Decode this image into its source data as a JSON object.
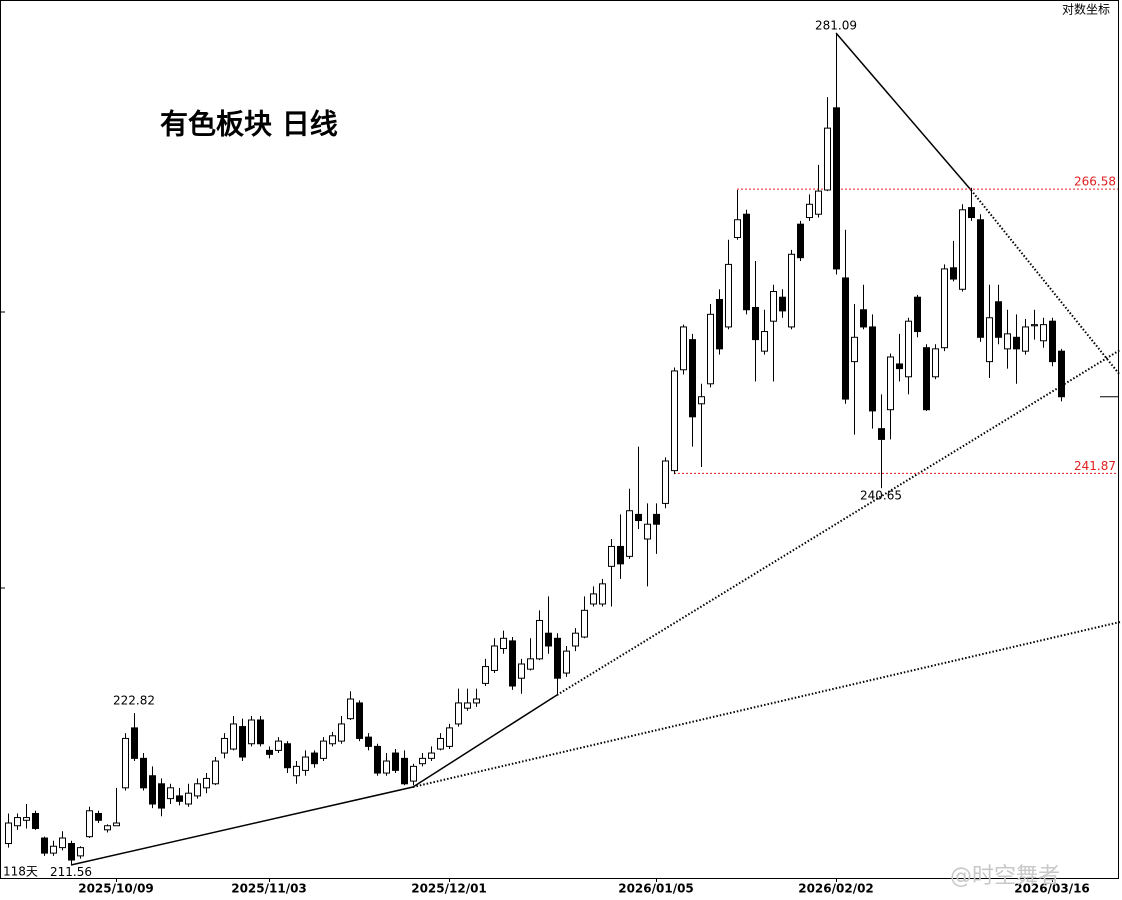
{
  "chart_data": {
    "type": "candlestick",
    "title": "有色板块 日线",
    "scale_label": "对数坐标",
    "period_label": "118天",
    "watermark": "@时空舞者",
    "log_scale": true,
    "ylim": [
      210.6,
      284.4
    ],
    "up_color": "#ffffff",
    "down_color": "#000000",
    "reference_lines": [
      266.58,
      241.87
    ],
    "reference_color": "#e02020",
    "categories": [
      null,
      null,
      null,
      null,
      null,
      null,
      null,
      null,
      null,
      null,
      null,
      null,
      "2025/10/09",
      null,
      null,
      null,
      null,
      null,
      null,
      null,
      null,
      null,
      null,
      null,
      null,
      null,
      null,
      null,
      null,
      "2025/11/03",
      null,
      null,
      null,
      null,
      null,
      null,
      null,
      null,
      null,
      null,
      null,
      null,
      null,
      null,
      null,
      null,
      null,
      null,
      null,
      "2025/12/01",
      null,
      null,
      null,
      null,
      null,
      null,
      null,
      null,
      null,
      null,
      null,
      null,
      null,
      null,
      null,
      null,
      null,
      null,
      null,
      null,
      null,
      null,
      "2026/01/05",
      null,
      null,
      null,
      null,
      null,
      null,
      null,
      null,
      null,
      null,
      null,
      null,
      null,
      null,
      null,
      null,
      null,
      null,
      null,
      "2026/02/02",
      null,
      null,
      null,
      null,
      null,
      null,
      null,
      null,
      null,
      null,
      null,
      null,
      null,
      null,
      null,
      null,
      null,
      null,
      null,
      null,
      null,
      null,
      null,
      "2026/03/16",
      null
    ],
    "ohlc": [
      [
        213.1,
        215.3,
        212.8,
        214.6
      ],
      [
        214.4,
        215.3,
        214.1,
        215.0
      ],
      [
        214.8,
        216.0,
        214.2,
        215.0
      ],
      [
        215.3,
        215.5,
        214.1,
        214.2
      ],
      [
        213.5,
        213.6,
        212.2,
        212.4
      ],
      [
        212.4,
        213.3,
        212.2,
        212.9
      ],
      [
        212.8,
        214.0,
        212.6,
        213.5
      ],
      [
        213.1,
        213.3,
        211.56,
        211.9
      ],
      [
        212.2,
        212.9,
        212.0,
        212.8
      ],
      [
        213.6,
        215.8,
        213.5,
        215.5
      ],
      [
        215.3,
        215.5,
        214.6,
        214.8
      ],
      [
        214.1,
        214.5,
        213.9,
        214.4
      ],
      [
        214.4,
        217.2,
        214.4,
        214.6
      ],
      [
        217.2,
        221.3,
        217.0,
        220.9
      ],
      [
        221.7,
        222.82,
        219.2,
        219.4
      ],
      [
        219.4,
        219.8,
        217.0,
        217.2
      ],
      [
        218.1,
        218.8,
        215.7,
        216.0
      ],
      [
        217.5,
        217.9,
        215.1,
        215.7
      ],
      [
        216.4,
        217.5,
        216.0,
        217.2
      ],
      [
        216.6,
        217.2,
        215.9,
        216.2
      ],
      [
        216.0,
        217.5,
        215.8,
        216.8
      ],
      [
        216.6,
        217.9,
        216.4,
        217.5
      ],
      [
        217.2,
        218.3,
        216.8,
        217.9
      ],
      [
        217.5,
        219.5,
        217.4,
        219.2
      ],
      [
        219.8,
        221.3,
        219.4,
        220.9
      ],
      [
        220.1,
        222.6,
        220.0,
        222.0
      ],
      [
        221.8,
        222.4,
        219.2,
        219.5
      ],
      [
        220.5,
        222.6,
        220.3,
        222.3
      ],
      [
        222.3,
        222.6,
        220.3,
        220.5
      ],
      [
        220.0,
        220.3,
        219.4,
        219.7
      ],
      [
        220.0,
        221.0,
        219.8,
        220.7
      ],
      [
        220.5,
        220.7,
        218.3,
        218.7
      ],
      [
        218.1,
        219.2,
        217.5,
        218.8
      ],
      [
        218.5,
        220.0,
        218.1,
        219.5
      ],
      [
        219.8,
        220.0,
        218.7,
        219.0
      ],
      [
        219.4,
        221.0,
        219.2,
        220.7
      ],
      [
        220.5,
        221.4,
        220.3,
        221.1
      ],
      [
        220.7,
        222.6,
        220.5,
        222.0
      ],
      [
        222.4,
        224.5,
        222.3,
        223.9
      ],
      [
        223.6,
        223.8,
        220.7,
        220.9
      ],
      [
        221.0,
        221.3,
        220.0,
        220.3
      ],
      [
        220.3,
        220.5,
        218.1,
        218.3
      ],
      [
        218.3,
        219.8,
        218.1,
        219.2
      ],
      [
        219.8,
        220.1,
        218.3,
        218.5
      ],
      [
        219.4,
        220.0,
        217.4,
        217.5
      ],
      [
        217.7,
        219.0,
        217.4,
        218.8
      ],
      [
        219.0,
        219.8,
        218.8,
        219.4
      ],
      [
        219.4,
        220.3,
        219.2,
        219.8
      ],
      [
        220.1,
        221.3,
        220.0,
        220.9
      ],
      [
        220.3,
        222.0,
        220.1,
        221.7
      ],
      [
        222.0,
        224.7,
        221.8,
        223.6
      ],
      [
        223.2,
        224.7,
        223.0,
        223.6
      ],
      [
        223.6,
        224.7,
        223.3,
        223.9
      ],
      [
        225.1,
        227.0,
        224.9,
        226.4
      ],
      [
        226.1,
        228.6,
        225.9,
        228.0
      ],
      [
        227.8,
        229.2,
        227.4,
        228.6
      ],
      [
        228.4,
        228.7,
        224.6,
        224.9
      ],
      [
        225.5,
        227.0,
        224.3,
        226.6
      ],
      [
        226.2,
        228.6,
        226.1,
        227.0
      ],
      [
        227.0,
        230.8,
        226.9,
        230.0
      ],
      [
        229.0,
        231.9,
        227.4,
        228.0
      ],
      [
        228.6,
        229.0,
        224.3,
        225.5
      ],
      [
        225.9,
        228.0,
        225.6,
        227.6
      ],
      [
        228.0,
        229.4,
        227.6,
        229.0
      ],
      [
        228.7,
        231.9,
        228.6,
        230.8
      ],
      [
        231.3,
        232.7,
        231.1,
        232.1
      ],
      [
        231.3,
        233.3,
        231.1,
        232.9
      ],
      [
        234.3,
        236.5,
        231.1,
        235.9
      ],
      [
        235.9,
        238.5,
        233.3,
        234.5
      ],
      [
        235.1,
        240.6,
        234.9,
        238.8
      ],
      [
        238.5,
        244.1,
        237.3,
        238.0
      ],
      [
        236.5,
        239.4,
        232.7,
        237.7
      ],
      [
        238.5,
        239.4,
        235.3,
        237.7
      ],
      [
        239.4,
        243.2,
        239.0,
        242.9
      ],
      [
        242.1,
        250.8,
        241.8,
        250.5
      ],
      [
        250.6,
        254.5,
        250.2,
        254.3
      ],
      [
        253.2,
        253.7,
        244.1,
        246.6
      ],
      [
        247.7,
        249.4,
        242.4,
        248.3
      ],
      [
        249.4,
        256.3,
        249.1,
        255.4
      ],
      [
        256.7,
        257.6,
        251.9,
        252.4
      ],
      [
        254.3,
        262.0,
        254.1,
        259.8
      ],
      [
        262.2,
        266.5,
        262.0,
        263.8
      ],
      [
        264.3,
        264.7,
        255.4,
        255.8
      ],
      [
        256.0,
        260.1,
        249.6,
        253.2
      ],
      [
        252.2,
        255.8,
        251.9,
        253.9
      ],
      [
        254.8,
        258.0,
        249.6,
        257.4
      ],
      [
        256.9,
        257.6,
        255.1,
        255.7
      ],
      [
        254.3,
        261.1,
        254.1,
        260.7
      ],
      [
        263.4,
        263.7,
        260.1,
        260.4
      ],
      [
        264.0,
        266.1,
        263.7,
        265.2
      ],
      [
        264.3,
        268.8,
        264.0,
        266.4
      ],
      [
        266.5,
        275.1,
        266.4,
        272.2
      ],
      [
        274.1,
        281.09,
        258.9,
        259.4
      ],
      [
        258.6,
        262.9,
        247.7,
        248.1
      ],
      [
        251.3,
        256.3,
        245.1,
        253.4
      ],
      [
        255.8,
        258.0,
        254.1,
        254.3
      ],
      [
        254.3,
        255.4,
        245.6,
        247.1
      ],
      [
        245.6,
        248.5,
        240.65,
        244.7
      ],
      [
        247.2,
        252.0,
        244.7,
        251.7
      ],
      [
        251.1,
        253.7,
        249.6,
        250.7
      ],
      [
        250.0,
        255.1,
        248.5,
        254.8
      ],
      [
        256.9,
        257.1,
        253.4,
        253.9
      ],
      [
        252.5,
        252.8,
        247.1,
        247.2
      ],
      [
        250.0,
        252.8,
        249.8,
        252.4
      ],
      [
        252.5,
        259.8,
        252.2,
        259.4
      ],
      [
        259.5,
        261.9,
        258.3,
        258.5
      ],
      [
        257.6,
        265.2,
        257.4,
        264.7
      ],
      [
        264.9,
        266.7,
        263.7,
        264.0
      ],
      [
        263.8,
        264.3,
        253.0,
        253.4
      ],
      [
        251.3,
        258.0,
        249.9,
        255.1
      ],
      [
        256.5,
        258.0,
        252.8,
        253.4
      ],
      [
        252.4,
        255.8,
        250.7,
        253.7
      ],
      [
        253.4,
        255.4,
        249.4,
        252.4
      ],
      [
        252.2,
        255.0,
        251.9,
        254.3
      ],
      [
        254.4,
        255.8,
        253.2,
        254.5
      ],
      [
        253.1,
        255.1,
        252.5,
        254.5
      ],
      [
        254.8,
        255.1,
        250.9,
        251.3
      ],
      [
        252.2,
        252.4,
        247.9,
        248.3
      ]
    ]
  }
}
